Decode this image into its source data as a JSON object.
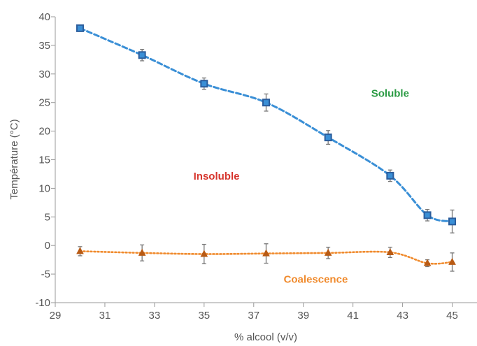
{
  "chart_data": {
    "type": "line",
    "title": "",
    "xlabel": "% alcool (v/v)",
    "ylabel": "Température (°C)",
    "xlim": [
      29,
      46
    ],
    "ylim": [
      -10,
      40
    ],
    "x_ticks": [
      29,
      31,
      33,
      35,
      37,
      39,
      41,
      43,
      45
    ],
    "y_ticks": [
      -10,
      -5,
      0,
      5,
      10,
      15,
      20,
      25,
      30,
      35,
      40
    ],
    "grid": false,
    "series": [
      {
        "line_style": "dashed",
        "marker": "square",
        "color": "#3a8fd6",
        "marker_color": "#2b5d9c",
        "x": [
          30,
          32.5,
          35,
          37.5,
          40,
          42.5,
          44,
          45
        ],
        "y": [
          38,
          33.3,
          28.3,
          25,
          18.9,
          12.2,
          5.3,
          4.2
        ],
        "error": [
          0.5,
          1.0,
          1.0,
          1.5,
          1.2,
          1.0,
          1.0,
          2.0
        ]
      },
      {
        "line_style": "dotted",
        "marker": "triangle",
        "color": "#f08a2c",
        "marker_color": "#b85a14",
        "x": [
          30,
          32.5,
          35,
          37.5,
          40,
          42.5,
          44,
          45
        ],
        "y": [
          -1,
          -1.3,
          -1.5,
          -1.4,
          -1.3,
          -1.2,
          -3.1,
          -2.9
        ],
        "error": [
          0.8,
          1.4,
          1.7,
          1.7,
          1.0,
          0.9,
          0.6,
          1.6
        ]
      }
    ],
    "annotations": [
      {
        "text": "Soluble",
        "x": 42.5,
        "y": 26,
        "color": "#2a9a43"
      },
      {
        "text": "Insoluble",
        "x": 35.5,
        "y": 11.5,
        "color": "#d6342c"
      },
      {
        "text": "Coalescence",
        "x": 39.5,
        "y": -6.5,
        "color": "#f08a2c"
      }
    ]
  }
}
